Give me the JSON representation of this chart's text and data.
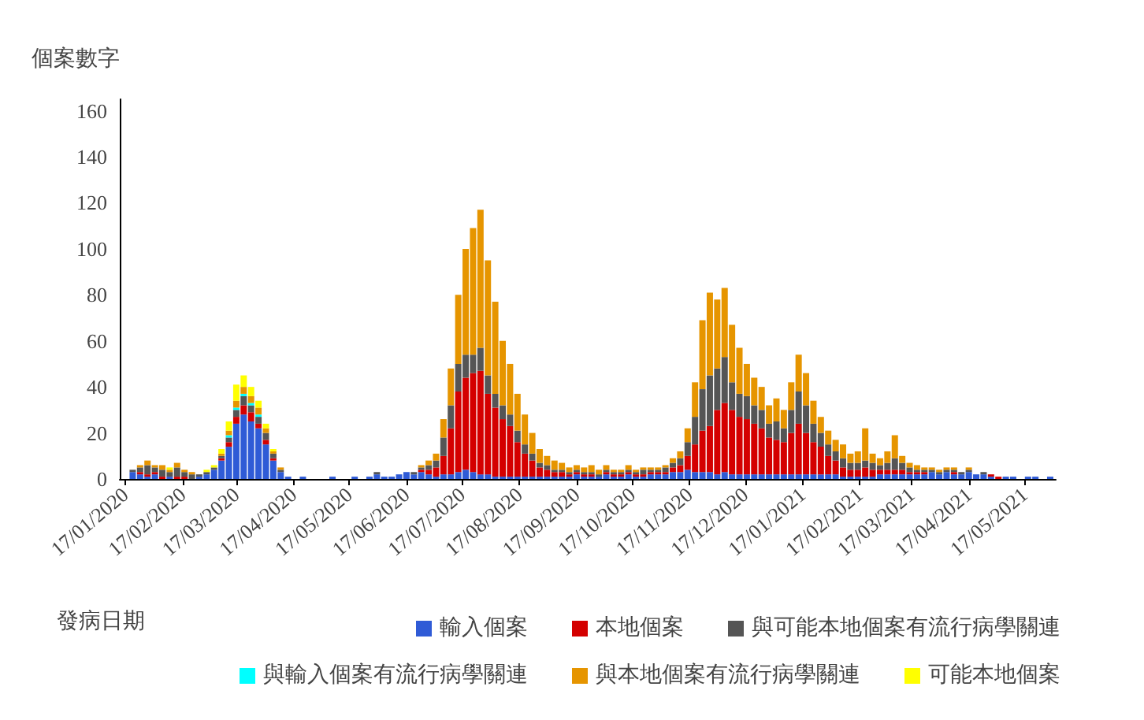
{
  "chart_data": {
    "type": "bar",
    "stacked": true,
    "ylabel": "個案數字",
    "xlabel": "發病日期",
    "x": [
      "2020-01-21",
      "2020-01-25",
      "2020-01-29",
      "2020-02-02",
      "2020-02-06",
      "2020-02-10",
      "2020-02-14",
      "2020-02-18",
      "2020-02-22",
      "2020-02-26",
      "2020-03-01",
      "2020-03-05",
      "2020-03-09",
      "2020-03-13",
      "2020-03-17",
      "2020-03-21",
      "2020-03-25",
      "2020-03-29",
      "2020-04-02",
      "2020-04-06",
      "2020-04-10",
      "2020-04-14",
      "2020-04-18",
      "2020-04-22",
      "2020-04-26",
      "2020-04-30",
      "2020-05-04",
      "2020-05-08",
      "2020-05-12",
      "2020-05-16",
      "2020-05-20",
      "2020-05-24",
      "2020-05-28",
      "2020-06-01",
      "2020-06-05",
      "2020-06-09",
      "2020-06-13",
      "2020-06-17",
      "2020-06-21",
      "2020-06-25",
      "2020-06-29",
      "2020-07-03",
      "2020-07-07",
      "2020-07-11",
      "2020-07-15",
      "2020-07-19",
      "2020-07-23",
      "2020-07-27",
      "2020-07-31",
      "2020-08-04",
      "2020-08-08",
      "2020-08-12",
      "2020-08-16",
      "2020-08-20",
      "2020-08-24",
      "2020-08-28",
      "2020-09-01",
      "2020-09-05",
      "2020-09-09",
      "2020-09-13",
      "2020-09-17",
      "2020-09-21",
      "2020-09-25",
      "2020-09-29",
      "2020-10-03",
      "2020-10-07",
      "2020-10-11",
      "2020-10-15",
      "2020-10-19",
      "2020-10-23",
      "2020-10-27",
      "2020-10-31",
      "2020-11-04",
      "2020-11-08",
      "2020-11-12",
      "2020-11-16",
      "2020-11-20",
      "2020-11-24",
      "2020-11-28",
      "2020-12-02",
      "2020-12-06",
      "2020-12-10",
      "2020-12-14",
      "2020-12-18",
      "2020-12-22",
      "2020-12-26",
      "2020-12-30",
      "2021-01-03",
      "2021-01-07",
      "2021-01-11",
      "2021-01-15",
      "2021-01-19",
      "2021-01-23",
      "2021-01-27",
      "2021-01-31",
      "2021-02-04",
      "2021-02-08",
      "2021-02-12",
      "2021-02-16",
      "2021-02-20",
      "2021-02-24",
      "2021-02-28",
      "2021-03-04",
      "2021-03-08",
      "2021-03-12",
      "2021-03-16",
      "2021-03-20",
      "2021-03-24",
      "2021-03-28",
      "2021-04-01",
      "2021-04-05",
      "2021-04-09",
      "2021-04-13",
      "2021-04-17",
      "2021-04-21",
      "2021-04-25",
      "2021-04-29",
      "2021-05-03",
      "2021-05-07",
      "2021-05-11",
      "2021-05-15",
      "2021-05-19",
      "2021-05-23",
      "2021-05-27",
      "2021-05-31"
    ],
    "series": [
      {
        "name": "輸入個案",
        "color": "#2f5bd6",
        "values": [
          3,
          2,
          1,
          2,
          0,
          1,
          0,
          0,
          0,
          1,
          2,
          4,
          8,
          14,
          24,
          28,
          25,
          22,
          15,
          8,
          3,
          1,
          0,
          1,
          0,
          0,
          0,
          1,
          0,
          0,
          1,
          0,
          1,
          2,
          1,
          1,
          2,
          3,
          2,
          3,
          2,
          1,
          2,
          2,
          3,
          4,
          3,
          2,
          2,
          1,
          1,
          1,
          1,
          1,
          1,
          1,
          1,
          1,
          1,
          1,
          2,
          1,
          1,
          1,
          2,
          1,
          1,
          2,
          1,
          1,
          2,
          2,
          2,
          3,
          3,
          4,
          3,
          3,
          3,
          2,
          3,
          2,
          2,
          2,
          2,
          2,
          2,
          2,
          2,
          2,
          2,
          2,
          2,
          2,
          2,
          2,
          1,
          1,
          1,
          1,
          1,
          2,
          2,
          2,
          2,
          2,
          2,
          2,
          3,
          2,
          3,
          2,
          2,
          3,
          2,
          2,
          1,
          0,
          1,
          1,
          0,
          1,
          1,
          0,
          1
        ]
      },
      {
        "name": "本地個案",
        "color": "#d40000",
        "values": [
          0,
          1,
          1,
          1,
          1,
          0,
          1,
          1,
          0,
          0,
          0,
          0,
          1,
          2,
          3,
          4,
          4,
          2,
          2,
          1,
          0,
          0,
          0,
          0,
          0,
          0,
          0,
          0,
          0,
          0,
          0,
          0,
          0,
          0,
          0,
          0,
          0,
          0,
          0,
          1,
          2,
          4,
          8,
          20,
          35,
          40,
          43,
          45,
          35,
          30,
          25,
          22,
          15,
          10,
          7,
          4,
          3,
          2,
          2,
          1,
          1,
          1,
          1,
          0,
          1,
          1,
          1,
          1,
          1,
          1,
          1,
          1,
          1,
          2,
          3,
          6,
          12,
          18,
          20,
          28,
          30,
          28,
          25,
          24,
          22,
          20,
          16,
          15,
          14,
          18,
          22,
          18,
          14,
          12,
          8,
          6,
          4,
          3,
          3,
          4,
          3,
          2,
          2,
          2,
          2,
          1,
          1,
          1,
          0,
          0,
          0,
          1,
          0,
          0,
          0,
          0,
          1,
          1,
          0,
          0,
          0,
          0,
          0,
          0,
          0
        ]
      },
      {
        "name": "與可能本地個案有流行病學關連",
        "color": "#555555",
        "values": [
          1,
          2,
          4,
          2,
          3,
          2,
          4,
          2,
          2,
          1,
          1,
          1,
          1,
          2,
          3,
          4,
          3,
          3,
          3,
          2,
          1,
          0,
          0,
          0,
          0,
          0,
          0,
          0,
          0,
          0,
          0,
          0,
          0,
          1,
          0,
          0,
          0,
          0,
          1,
          1,
          2,
          3,
          8,
          10,
          12,
          10,
          8,
          10,
          8,
          6,
          6,
          5,
          5,
          4,
          3,
          2,
          2,
          1,
          1,
          1,
          1,
          1,
          1,
          1,
          1,
          1,
          1,
          1,
          1,
          2,
          1,
          1,
          2,
          2,
          3,
          6,
          12,
          18,
          22,
          18,
          20,
          12,
          10,
          10,
          8,
          8,
          6,
          8,
          6,
          10,
          14,
          12,
          8,
          6,
          5,
          4,
          4,
          3,
          3,
          3,
          3,
          2,
          3,
          5,
          3,
          2,
          1,
          1,
          1,
          1,
          1,
          1,
          1,
          1,
          0,
          1,
          0,
          0,
          0,
          0,
          0,
          0,
          0,
          0,
          0
        ]
      },
      {
        "name": "與輸入個案有流行病學關連",
        "color": "#00ffff",
        "values": [
          0,
          0,
          0,
          0,
          0,
          0,
          0,
          0,
          0,
          0,
          0,
          0,
          0,
          1,
          1,
          1,
          1,
          1,
          0,
          0,
          0,
          0,
          0,
          0,
          0,
          0,
          0,
          0,
          0,
          0,
          0,
          0,
          0,
          0,
          0,
          0,
          0,
          0,
          0,
          0,
          0,
          0,
          0,
          0,
          0,
          0,
          0,
          0,
          0,
          0,
          0,
          0,
          0,
          0,
          0,
          0,
          0,
          0,
          0,
          0,
          0,
          0,
          0,
          0,
          0,
          0,
          0,
          0,
          0,
          0,
          0,
          0,
          0,
          0,
          0,
          0,
          0,
          0,
          0,
          0,
          0,
          0,
          0,
          0,
          0,
          0,
          0,
          0,
          0,
          0,
          0,
          0,
          0,
          0,
          0,
          0,
          0,
          0,
          0,
          0,
          0,
          0,
          0,
          0,
          0,
          0,
          0,
          0,
          0,
          0,
          0,
          0,
          0,
          0,
          0,
          0,
          0,
          0,
          0,
          0,
          0,
          0,
          0,
          0,
          0
        ]
      },
      {
        "name": "與本地個案有流行病學關連",
        "color": "#e69500",
        "values": [
          0,
          1,
          2,
          1,
          2,
          1,
          2,
          1,
          1,
          0,
          0,
          0,
          1,
          2,
          3,
          3,
          3,
          3,
          2,
          1,
          1,
          0,
          0,
          0,
          0,
          0,
          0,
          0,
          0,
          0,
          0,
          0,
          0,
          0,
          0,
          0,
          0,
          0,
          0,
          1,
          2,
          3,
          8,
          16,
          30,
          46,
          55,
          60,
          50,
          40,
          28,
          22,
          16,
          13,
          9,
          6,
          4,
          4,
          3,
          2,
          2,
          2,
          3,
          2,
          2,
          1,
          1,
          2,
          1,
          1,
          1,
          1,
          1,
          2,
          3,
          6,
          15,
          30,
          36,
          30,
          30,
          25,
          20,
          14,
          12,
          10,
          8,
          10,
          8,
          12,
          16,
          14,
          10,
          7,
          6,
          5,
          6,
          4,
          5,
          14,
          4,
          3,
          5,
          10,
          3,
          2,
          2,
          1,
          1,
          1,
          1,
          1,
          0,
          1,
          0,
          0,
          0,
          0,
          0,
          0,
          0,
          0,
          0,
          0,
          0
        ]
      },
      {
        "name": "可能本地個案",
        "color": "#ffff00",
        "values": [
          0,
          0,
          0,
          0,
          0,
          1,
          0,
          0,
          0,
          0,
          1,
          1,
          2,
          4,
          7,
          5,
          4,
          3,
          2,
          1,
          0,
          0,
          0,
          0,
          0,
          0,
          0,
          0,
          0,
          0,
          0,
          0,
          0,
          0,
          0,
          0,
          0,
          0,
          0,
          0,
          0,
          0,
          0,
          0,
          0,
          0,
          0,
          0,
          0,
          0,
          0,
          0,
          0,
          0,
          0,
          0,
          0,
          0,
          0,
          0,
          0,
          0,
          0,
          0,
          0,
          0,
          0,
          0,
          0,
          0,
          0,
          0,
          0,
          0,
          0,
          0,
          0,
          0,
          0,
          0,
          0,
          0,
          0,
          0,
          0,
          0,
          0,
          0,
          0,
          0,
          0,
          0,
          0,
          0,
          0,
          0,
          0,
          0,
          0,
          0,
          0,
          0,
          0,
          0,
          0,
          0,
          0,
          0,
          0,
          0,
          0,
          0,
          0,
          0,
          0,
          0,
          0,
          0,
          0,
          0,
          0,
          0,
          0,
          0,
          0
        ]
      }
    ],
    "xlim": [
      "2020-01-14",
      "2021-06-03"
    ],
    "xticks": [
      {
        "value": "2020-01-17",
        "label": "17/01/2020"
      },
      {
        "value": "2020-02-17",
        "label": "17/02/2020"
      },
      {
        "value": "2020-03-17",
        "label": "17/03/2020"
      },
      {
        "value": "2020-04-17",
        "label": "17/04/2020"
      },
      {
        "value": "2020-05-17",
        "label": "17/05/2020"
      },
      {
        "value": "2020-06-17",
        "label": "17/06/2020"
      },
      {
        "value": "2020-07-17",
        "label": "17/07/2020"
      },
      {
        "value": "2020-08-17",
        "label": "17/08/2020"
      },
      {
        "value": "2020-09-17",
        "label": "17/09/2020"
      },
      {
        "value": "2020-10-17",
        "label": "17/10/2020"
      },
      {
        "value": "2020-11-17",
        "label": "17/11/2020"
      },
      {
        "value": "2020-12-17",
        "label": "17/12/2020"
      },
      {
        "value": "2021-01-17",
        "label": "17/01/2021"
      },
      {
        "value": "2021-02-17",
        "label": "17/02/2021"
      },
      {
        "value": "2021-03-17",
        "label": "17/03/2021"
      },
      {
        "value": "2021-04-17",
        "label": "17/04/2021"
      },
      {
        "value": "2021-05-17",
        "label": "17/05/2021"
      }
    ],
    "ylim": [
      0,
      165
    ],
    "yticks": [
      0,
      20,
      40,
      60,
      80,
      100,
      120,
      140,
      160
    ],
    "grid": false,
    "legend": "bottom right"
  }
}
